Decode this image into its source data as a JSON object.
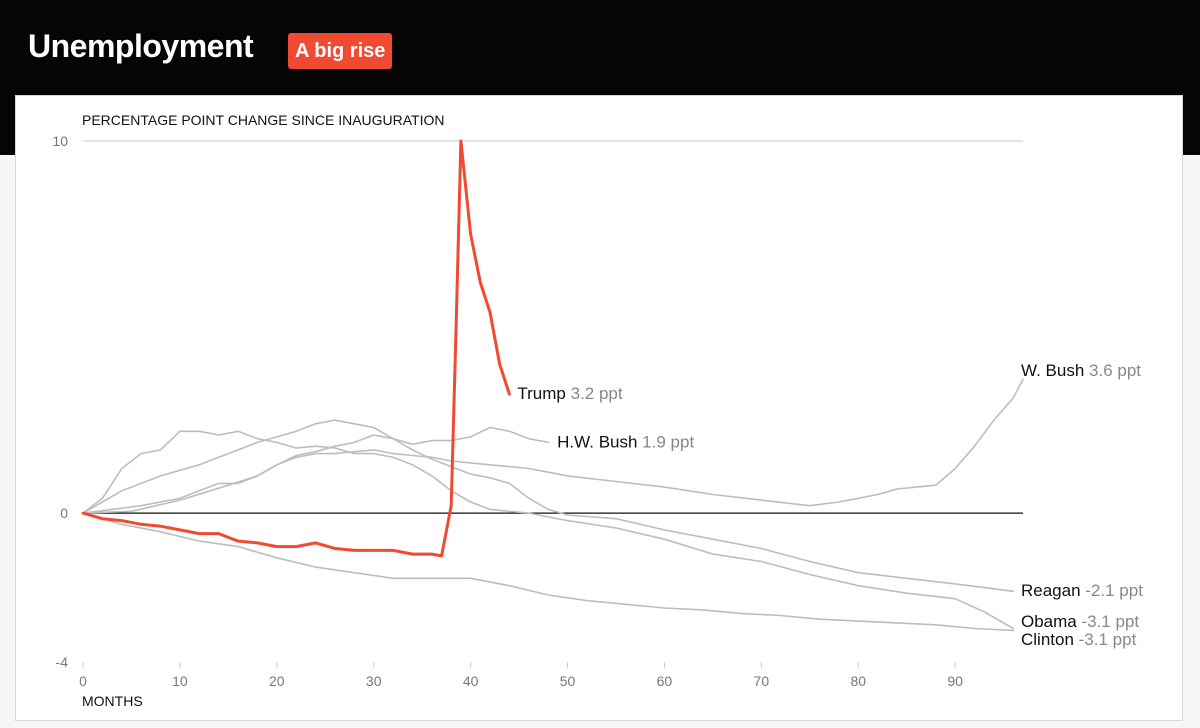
{
  "header": {
    "title": "Unemployment",
    "badge": "A big rise",
    "badge_color": "#f04b32"
  },
  "chart_data": {
    "type": "line",
    "ylabel": "PERCENTAGE POINT CHANGE SINCE INAUGURATION",
    "xlabel": "MONTHS",
    "xlim": [
      0,
      97
    ],
    "ylim": [
      -4,
      10
    ],
    "x_ticks": [
      0,
      10,
      20,
      30,
      40,
      50,
      60,
      70,
      80,
      90
    ],
    "y_ticks": [
      10,
      0,
      -4
    ],
    "grid_y": [
      10
    ],
    "zero_line": true,
    "unit": "ppt",
    "colors": {
      "highlight": "#f04b32",
      "others": "#bdbdbd",
      "zero": "#111111",
      "grid": "#d6d6d6"
    },
    "series": [
      {
        "name": "Reagan",
        "value_label": "-2.1 ppt",
        "highlight": false,
        "points": [
          [
            0,
            0
          ],
          [
            2,
            0.3
          ],
          [
            4,
            0.6
          ],
          [
            6,
            0.8
          ],
          [
            8,
            1.0
          ],
          [
            10,
            1.15
          ],
          [
            12,
            1.3
          ],
          [
            14,
            1.5
          ],
          [
            16,
            1.7
          ],
          [
            18,
            1.9
          ],
          [
            20,
            2.05
          ],
          [
            22,
            2.2
          ],
          [
            24,
            2.4
          ],
          [
            26,
            2.5
          ],
          [
            28,
            2.4
          ],
          [
            30,
            2.3
          ],
          [
            32,
            2.0
          ],
          [
            34,
            1.7
          ],
          [
            36,
            1.45
          ],
          [
            38,
            1.25
          ],
          [
            40,
            1.05
          ],
          [
            42,
            0.95
          ],
          [
            44,
            0.8
          ],
          [
            46,
            0.4
          ],
          [
            48,
            0.1
          ],
          [
            50,
            -0.05
          ],
          [
            55,
            -0.15
          ],
          [
            60,
            -0.45
          ],
          [
            65,
            -0.7
          ],
          [
            70,
            -0.95
          ],
          [
            75,
            -1.3
          ],
          [
            80,
            -1.6
          ],
          [
            85,
            -1.75
          ],
          [
            90,
            -1.9
          ],
          [
            93,
            -2.0
          ],
          [
            96,
            -2.1
          ]
        ]
      },
      {
        "name": "H.W. Bush",
        "value_label": "1.9 ppt",
        "highlight": false,
        "points": [
          [
            0,
            0
          ],
          [
            5,
            0.05
          ],
          [
            10,
            0.35
          ],
          [
            15,
            0.75
          ],
          [
            18,
            1.0
          ],
          [
            20,
            1.3
          ],
          [
            22,
            1.55
          ],
          [
            24,
            1.65
          ],
          [
            26,
            1.8
          ],
          [
            28,
            1.9
          ],
          [
            30,
            2.1
          ],
          [
            32,
            2.0
          ],
          [
            34,
            1.85
          ],
          [
            36,
            1.95
          ],
          [
            38,
            1.95
          ],
          [
            40,
            2.05
          ],
          [
            42,
            2.3
          ],
          [
            44,
            2.2
          ],
          [
            46,
            2.0
          ],
          [
            48,
            1.9
          ]
        ]
      },
      {
        "name": "W. Bush",
        "value_label": "3.6 ppt",
        "highlight": false,
        "points": [
          [
            0,
            0
          ],
          [
            3,
            0.1
          ],
          [
            6,
            0.2
          ],
          [
            8,
            0.3
          ],
          [
            10,
            0.4
          ],
          [
            12,
            0.6
          ],
          [
            14,
            0.8
          ],
          [
            16,
            0.8
          ],
          [
            18,
            1.0
          ],
          [
            20,
            1.3
          ],
          [
            22,
            1.5
          ],
          [
            24,
            1.6
          ],
          [
            26,
            1.6
          ],
          [
            28,
            1.65
          ],
          [
            30,
            1.7
          ],
          [
            32,
            1.6
          ],
          [
            34,
            1.55
          ],
          [
            36,
            1.5
          ],
          [
            38,
            1.4
          ],
          [
            40,
            1.35
          ],
          [
            42,
            1.3
          ],
          [
            44,
            1.25
          ],
          [
            46,
            1.2
          ],
          [
            48,
            1.1
          ],
          [
            50,
            1.0
          ],
          [
            55,
            0.85
          ],
          [
            60,
            0.7
          ],
          [
            65,
            0.5
          ],
          [
            70,
            0.35
          ],
          [
            75,
            0.2
          ],
          [
            78,
            0.3
          ],
          [
            80,
            0.4
          ],
          [
            82,
            0.5
          ],
          [
            84,
            0.65
          ],
          [
            86,
            0.7
          ],
          [
            88,
            0.75
          ],
          [
            90,
            1.2
          ],
          [
            92,
            1.8
          ],
          [
            94,
            2.5
          ],
          [
            96,
            3.1
          ],
          [
            97,
            3.6
          ]
        ]
      },
      {
        "name": "Clinton",
        "value_label": "-3.1 ppt",
        "highlight": false,
        "points": [
          [
            0,
            0
          ],
          [
            4,
            -0.3
          ],
          [
            8,
            -0.5
          ],
          [
            12,
            -0.75
          ],
          [
            16,
            -0.9
          ],
          [
            20,
            -1.2
          ],
          [
            24,
            -1.45
          ],
          [
            28,
            -1.6
          ],
          [
            32,
            -1.75
          ],
          [
            36,
            -1.75
          ],
          [
            40,
            -1.75
          ],
          [
            44,
            -1.95
          ],
          [
            48,
            -2.2
          ],
          [
            52,
            -2.35
          ],
          [
            56,
            -2.45
          ],
          [
            60,
            -2.55
          ],
          [
            64,
            -2.6
          ],
          [
            68,
            -2.7
          ],
          [
            72,
            -2.75
          ],
          [
            76,
            -2.85
          ],
          [
            80,
            -2.9
          ],
          [
            84,
            -2.95
          ],
          [
            88,
            -3.0
          ],
          [
            92,
            -3.1
          ],
          [
            96,
            -3.15
          ]
        ]
      },
      {
        "name": "Obama",
        "value_label": "-3.1 ppt",
        "highlight": false,
        "points": [
          [
            0,
            0
          ],
          [
            2,
            0.4
          ],
          [
            4,
            1.2
          ],
          [
            6,
            1.6
          ],
          [
            8,
            1.7
          ],
          [
            10,
            2.2
          ],
          [
            12,
            2.2
          ],
          [
            14,
            2.1
          ],
          [
            16,
            2.2
          ],
          [
            18,
            2.0
          ],
          [
            20,
            1.9
          ],
          [
            22,
            1.75
          ],
          [
            24,
            1.8
          ],
          [
            26,
            1.75
          ],
          [
            28,
            1.6
          ],
          [
            30,
            1.6
          ],
          [
            32,
            1.5
          ],
          [
            34,
            1.3
          ],
          [
            36,
            1.0
          ],
          [
            38,
            0.6
          ],
          [
            40,
            0.3
          ],
          [
            42,
            0.1
          ],
          [
            44,
            0.05
          ],
          [
            46,
            0.0
          ],
          [
            48,
            -0.1
          ],
          [
            50,
            -0.2
          ],
          [
            55,
            -0.4
          ],
          [
            60,
            -0.7
          ],
          [
            65,
            -1.1
          ],
          [
            70,
            -1.3
          ],
          [
            75,
            -1.65
          ],
          [
            80,
            -1.95
          ],
          [
            85,
            -2.15
          ],
          [
            90,
            -2.3
          ],
          [
            93,
            -2.65
          ],
          [
            96,
            -3.1
          ]
        ]
      },
      {
        "name": "Trump",
        "value_label": "3.2 ppt",
        "highlight": true,
        "points": [
          [
            0,
            0
          ],
          [
            2,
            -0.15
          ],
          [
            4,
            -0.2
          ],
          [
            6,
            -0.3
          ],
          [
            8,
            -0.35
          ],
          [
            10,
            -0.45
          ],
          [
            12,
            -0.55
          ],
          [
            14,
            -0.55
          ],
          [
            16,
            -0.75
          ],
          [
            18,
            -0.8
          ],
          [
            20,
            -0.9
          ],
          [
            22,
            -0.9
          ],
          [
            24,
            -0.8
          ],
          [
            26,
            -0.95
          ],
          [
            28,
            -1.0
          ],
          [
            30,
            -1.0
          ],
          [
            32,
            -1.0
          ],
          [
            34,
            -1.1
          ],
          [
            36,
            -1.1
          ],
          [
            37,
            -1.15
          ],
          [
            38,
            0.2
          ],
          [
            38.5,
            5.0
          ],
          [
            39,
            10.0
          ],
          [
            40,
            7.5
          ],
          [
            41,
            6.2
          ],
          [
            42,
            5.4
          ],
          [
            43,
            4.0
          ],
          [
            44,
            3.2
          ]
        ]
      }
    ]
  }
}
